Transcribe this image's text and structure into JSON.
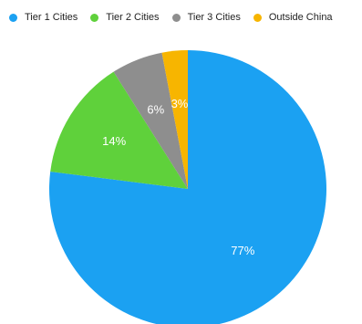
{
  "chart_data": {
    "type": "pie",
    "categories": [
      "Tier 1 Cities",
      "Tier 2 Cities",
      "Tier 3 Cities",
      "Outside China"
    ],
    "values": [
      77,
      14,
      6,
      3
    ],
    "labels": [
      "77%",
      "14%",
      "6%",
      "3%"
    ],
    "colors": [
      "#1ba1f2",
      "#5fd13b",
      "#8e8e8e",
      "#f7b500"
    ],
    "legend_position": "top",
    "start": "12 o'clock, clockwise"
  }
}
